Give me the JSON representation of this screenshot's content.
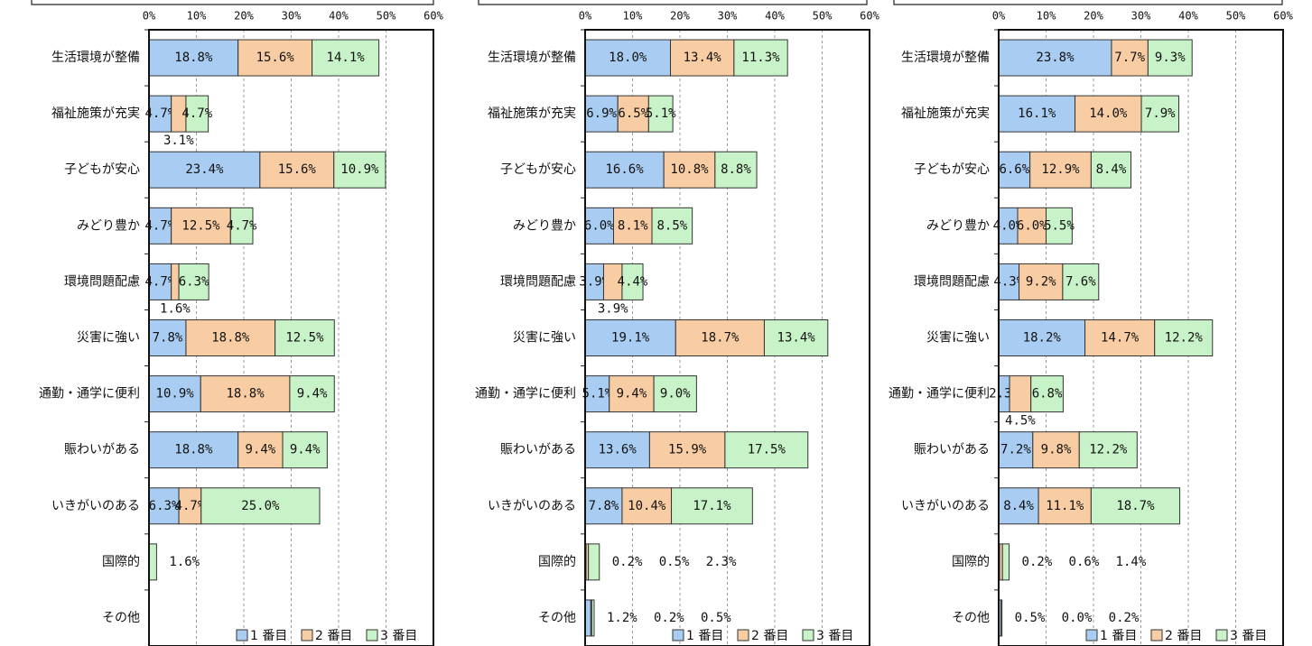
{
  "chart_data": [
    {
      "type": "stacked-barh",
      "categories": [
        "生活環境が整備",
        "福祉施策が充実",
        "子どもが安心",
        "みどり豊か",
        "環境問題配慮",
        "災害に強い",
        "通勤・通学に便利",
        "賑わいがある",
        "いきがいのある",
        "国際的",
        "その他"
      ],
      "series": [
        {
          "name": "1 番目",
          "color": "#a9cdf2",
          "values": [
            18.8,
            4.7,
            23.4,
            4.7,
            4.7,
            7.8,
            10.9,
            18.8,
            6.3,
            0,
            0
          ],
          "value_labels": [
            "18.8%",
            "4.7%",
            "23.4%",
            "4.7%",
            "4.7%",
            "7.8%",
            "10.9%",
            "18.8%",
            "6.3%",
            null,
            null
          ]
        },
        {
          "name": "2 番目",
          "color": "#f9cda3",
          "values": [
            15.6,
            3.1,
            15.6,
            12.5,
            1.6,
            18.8,
            18.8,
            9.4,
            4.7,
            0,
            0
          ],
          "value_labels": [
            "15.6%",
            "3.1%",
            "15.6%",
            "12.5%",
            "1.6%",
            "18.8%",
            "18.8%",
            "9.4%",
            "4.7%",
            null,
            null
          ]
        },
        {
          "name": "3 番目",
          "color": "#c8f3c8",
          "values": [
            14.1,
            4.7,
            10.9,
            4.7,
            6.3,
            12.5,
            9.4,
            9.4,
            25.0,
            1.6,
            0
          ],
          "value_labels": [
            "14.1%",
            "4.7%",
            "10.9%",
            "4.7%",
            "6.3%",
            "12.5%",
            "9.4%",
            "9.4%",
            "25.0%",
            "1.6%",
            null
          ]
        }
      ],
      "xlim": [
        0,
        60
      ],
      "xticks": [
        {
          "value": 0,
          "label": "0%"
        },
        {
          "value": 10,
          "label": "10%"
        },
        {
          "value": 20,
          "label": "20%"
        },
        {
          "value": 30,
          "label": "30%"
        },
        {
          "value": 40,
          "label": "40%"
        },
        {
          "value": 50,
          "label": "50%"
        },
        {
          "value": 60,
          "label": "60%"
        }
      ],
      "grid": true,
      "legend": "bottom-right"
    },
    {
      "type": "stacked-barh",
      "categories": [
        "生活環境が整備",
        "福祉施策が充実",
        "子どもが安心",
        "みどり豊か",
        "環境問題配慮",
        "災害に強い",
        "通勤・通学に便利",
        "賑わいがある",
        "いきがいのある",
        "国際的",
        "その他"
      ],
      "series": [
        {
          "name": "1 番目",
          "color": "#a9cdf2",
          "values": [
            18.0,
            6.9,
            16.6,
            6.0,
            3.9,
            19.1,
            5.1,
            13.6,
            7.8,
            0.2,
            1.2
          ],
          "value_labels": [
            "18.0%",
            "6.9%",
            "16.6%",
            "6.0%",
            "3.9%",
            "19.1%",
            "5.1%",
            "13.6%",
            "7.8%",
            "0.2%",
            "1.2%"
          ]
        },
        {
          "name": "2 番目",
          "color": "#f9cda3",
          "values": [
            13.4,
            6.5,
            10.8,
            8.1,
            3.9,
            18.7,
            9.4,
            15.9,
            10.4,
            0.5,
            0.2
          ],
          "value_labels": [
            "13.4%",
            "6.5%",
            "10.8%",
            "8.1%",
            "3.9%",
            "18.7%",
            "9.4%",
            "15.9%",
            "10.4%",
            "0.5%",
            "0.2%"
          ]
        },
        {
          "name": "3 番目",
          "color": "#c8f3c8",
          "values": [
            11.3,
            5.1,
            8.8,
            8.5,
            4.4,
            13.4,
            9.0,
            17.5,
            17.1,
            2.3,
            0.5
          ],
          "value_labels": [
            "11.3%",
            "5.1%",
            "8.8%",
            "8.5%",
            "4.4%",
            "13.4%",
            "9.0%",
            "17.5%",
            "17.1%",
            "2.3%",
            "0.5%"
          ]
        }
      ],
      "xlim": [
        0,
        60
      ],
      "xticks": [
        {
          "value": 0,
          "label": "0%"
        },
        {
          "value": 10,
          "label": "10%"
        },
        {
          "value": 20,
          "label": "20%"
        },
        {
          "value": 30,
          "label": "30%"
        },
        {
          "value": 40,
          "label": "40%"
        },
        {
          "value": 50,
          "label": "50%"
        },
        {
          "value": 60,
          "label": "60%"
        }
      ],
      "grid": true,
      "legend": "bottom-right"
    },
    {
      "type": "stacked-barh",
      "categories": [
        "生活環境が整備",
        "福祉施策が充実",
        "子どもが安心",
        "みどり豊か",
        "環境問題配慮",
        "災害に強い",
        "通勤・通学に便利",
        "賑わいがある",
        "いきがいのある",
        "国際的",
        "その他"
      ],
      "series": [
        {
          "name": "1 番目",
          "color": "#a9cdf2",
          "values": [
            23.8,
            16.1,
            6.6,
            4.0,
            4.3,
            18.2,
            2.3,
            7.2,
            8.4,
            0.2,
            0.5
          ],
          "value_labels": [
            "23.8%",
            "16.1%",
            "6.6%",
            "4.0%",
            "4.3%",
            "18.2%",
            "2.3%",
            "7.2%",
            "8.4%",
            "0.2%",
            "0.5%"
          ]
        },
        {
          "name": "2 番目",
          "color": "#f9cda3",
          "values": [
            7.7,
            14.0,
            12.9,
            6.0,
            9.2,
            14.7,
            4.5,
            9.8,
            11.1,
            0.6,
            0.0
          ],
          "value_labels": [
            "7.7%",
            "14.0%",
            "12.9%",
            "6.0%",
            "9.2%",
            "14.7%",
            "4.5%",
            "9.8%",
            "11.1%",
            "0.6%",
            "0.0%"
          ]
        },
        {
          "name": "3 番目",
          "color": "#c8f3c8",
          "values": [
            9.3,
            7.9,
            8.4,
            5.5,
            7.6,
            12.2,
            6.8,
            12.2,
            18.7,
            1.4,
            0.2
          ],
          "value_labels": [
            "9.3%",
            "7.9%",
            "8.4%",
            "5.5%",
            "7.6%",
            "12.2%",
            "6.8%",
            "12.2%",
            "18.7%",
            "1.4%",
            "0.2%"
          ]
        }
      ],
      "xlim": [
        0,
        60
      ],
      "xticks": [
        {
          "value": 0,
          "label": "0%"
        },
        {
          "value": 10,
          "label": "10%"
        },
        {
          "value": 20,
          "label": "20%"
        },
        {
          "value": 30,
          "label": "30%"
        },
        {
          "value": 40,
          "label": "40%"
        },
        {
          "value": 50,
          "label": "50%"
        },
        {
          "value": 60,
          "label": "60%"
        }
      ],
      "grid": true,
      "legend": "bottom-right"
    }
  ]
}
